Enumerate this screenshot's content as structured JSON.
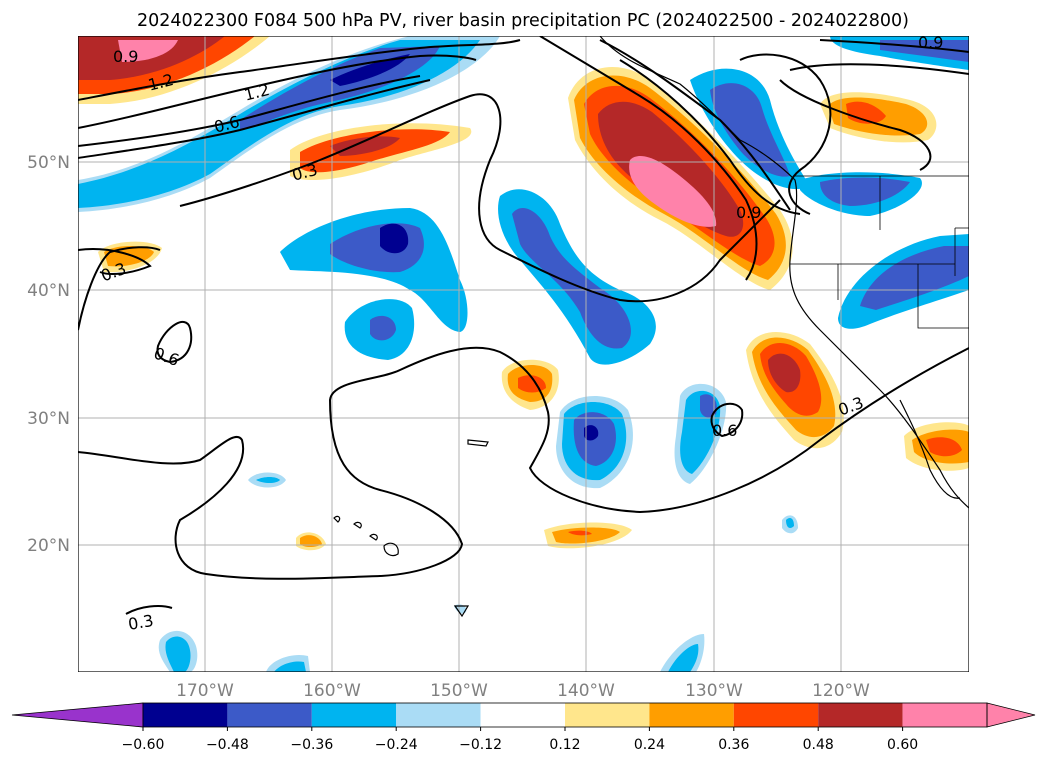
{
  "title": "2024022300 F084 500 hPa PV, river basin precipitation PC (2024022500 - 2024022800)",
  "map": {
    "latitude_labels": [
      "50°N",
      "40°N",
      "30°N",
      "20°N"
    ],
    "longitude_labels": [
      "170°W",
      "160°W",
      "150°W",
      "140°W",
      "130°W",
      "120°W"
    ],
    "contour_labels": [
      "0.9",
      "1.2",
      "1.2",
      "0.6",
      "0.3",
      "0.3",
      "0.6",
      "0.9",
      "0.9",
      "0.3",
      "0.6",
      "0.3"
    ]
  },
  "colorbar": {
    "tick_labels": [
      "−0.60",
      "−0.48",
      "−0.36",
      "−0.24",
      "−0.12",
      "0.12",
      "0.24",
      "0.36",
      "0.48",
      "0.60"
    ],
    "colors": [
      "#9933cc",
      "#000090",
      "#3c5ac8",
      "#00b4f0",
      "#aadcf5",
      "#ffffff",
      "#ffe68c",
      "#ff9e00",
      "#ff4600",
      "#b42828",
      "#ff82aa",
      "#ff82aa"
    ]
  },
  "colors": {
    "neg_dark": "#000090",
    "neg_mid": "#3c5ac8",
    "neg_light": "#00b4f0",
    "neg_pale": "#aadcf5",
    "pos_pale": "#ffe68c",
    "pos_light": "#ff9e00",
    "pos_mid": "#ff4600",
    "pos_dark": "#b42828",
    "pos_max": "#ff82aa",
    "grid": "#b0b0b0"
  }
}
